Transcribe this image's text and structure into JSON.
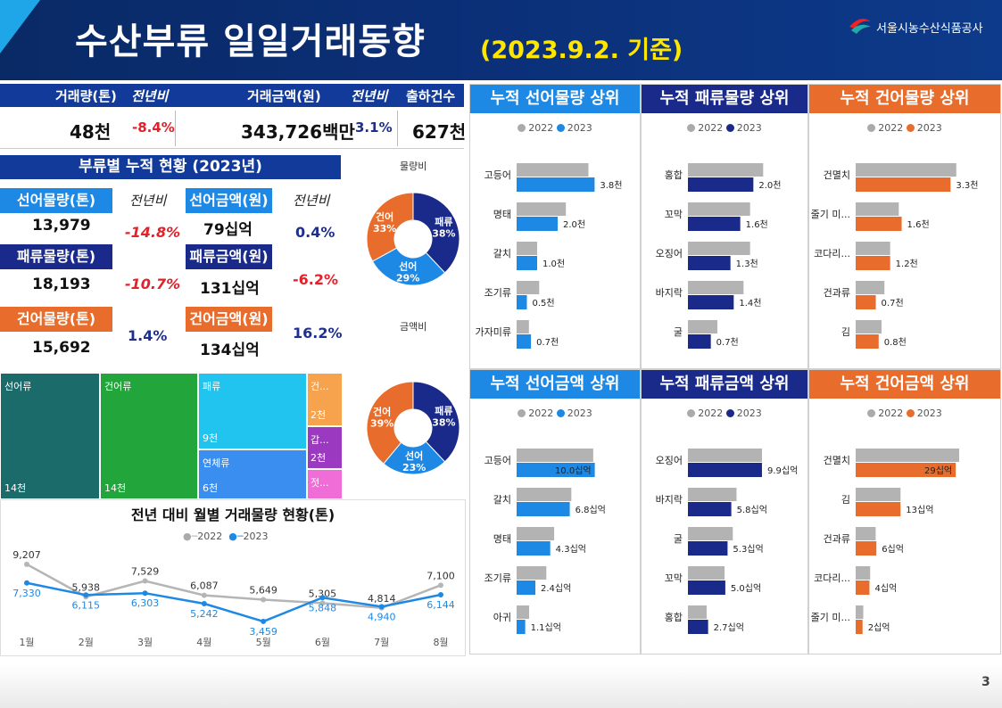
{
  "header": {
    "title": "수산부류 일일거래동향",
    "date": "(2023.9.2. 기준)",
    "org": "서울시농수산식품공사"
  },
  "kpi": {
    "h_volume": "거래량(톤)",
    "h_yoy1": "전년비",
    "h_amount": "거래금액(원)",
    "h_yoy2": "전년비",
    "h_shipments": "출하건수",
    "volume_num": "48",
    "volume_unit": "천",
    "volume_yoy": "-8.4%",
    "amount_num": "343,726",
    "amount_unit": "백만",
    "amount_yoy": "3.1%",
    "shipments_num": "627",
    "shipments_unit": "천"
  },
  "cum": {
    "title": "부류별 누적 현황 (2023년)",
    "yoy_label1": "전년비",
    "yoy_label2": "전년비",
    "rows": [
      {
        "vol_label": "선어물량(톤)",
        "vol": "13,979",
        "vol_yoy": "-14.8%",
        "amt_label": "선어금액(원)",
        "amt_num": "79",
        "amt_unit": "십억",
        "amt_yoy": "0.4%"
      },
      {
        "vol_label": "패류물량(톤)",
        "vol": "18,193",
        "vol_yoy": "-10.7%",
        "amt_label": "패류금액(원)",
        "amt_num": "131",
        "amt_unit": "십억",
        "amt_yoy": "-6.2%"
      },
      {
        "vol_label": "건어물량(톤)",
        "vol": "15,692",
        "vol_yoy": "1.4%",
        "amt_label": "건어금액(원)",
        "amt_num": "134",
        "amt_unit": "십억",
        "amt_yoy": "16.2%"
      }
    ]
  },
  "donuts": {
    "volume_title": "물량비",
    "amount_title": "금액비",
    "volume": [
      {
        "name": "패류",
        "value": 38,
        "color": "#1a2a8a"
      },
      {
        "name": "선어",
        "value": 29,
        "color": "#1e88e5"
      },
      {
        "name": "건어",
        "value": 33,
        "color": "#e86c2b"
      }
    ],
    "amount": [
      {
        "name": "패류",
        "value": 38,
        "color": "#1a2a8a"
      },
      {
        "name": "선어",
        "value": 23,
        "color": "#1e88e5"
      },
      {
        "name": "건어",
        "value": 39,
        "color": "#e86c2b"
      }
    ]
  },
  "treemap": [
    {
      "name": "선어류",
      "value": "14천",
      "color": "#1c6b6b"
    },
    {
      "name": "건어류",
      "value": "14천",
      "color": "#22a53a"
    },
    {
      "name": "패류",
      "value": "9천",
      "color": "#21c4ef"
    },
    {
      "name": "연체류",
      "value": "6천",
      "color": "#3a8ef0"
    },
    {
      "name": "건...",
      "value": "2천",
      "color": "#f7a24c"
    },
    {
      "name": "갑...",
      "value": "2천",
      "color": "#9b3ac0"
    },
    {
      "name": "젓...",
      "value": "",
      "color": "#f06cd6"
    }
  ],
  "line": {
    "title": "전년 대비 월별 거래물량 현황(톤)",
    "months": [
      "1월",
      "2월",
      "3월",
      "4월",
      "5월",
      "6월",
      "7월",
      "8월"
    ],
    "s2022": [
      9207,
      5938,
      7529,
      6087,
      5649,
      5305,
      4814,
      7100
    ],
    "s2023": [
      7330,
      6115,
      6303,
      5242,
      3459,
      5848,
      4940,
      6144
    ],
    "labels2022": [
      "9,207",
      "5,938",
      "7,529",
      "6,087",
      "5,649",
      "5,305",
      "4,814",
      "7,100"
    ],
    "labels2023": [
      "7,330",
      "6,115",
      "6,303",
      "5,242",
      "3,459",
      "5,848",
      "4,940",
      "6,144"
    ],
    "legend": [
      "2022",
      "2023"
    ]
  },
  "panels": [
    {
      "title": "누적 선어물량 상위",
      "hcolor": "#1e88e5",
      "color": "#1e88e5",
      "legend": [
        "2022",
        "2023"
      ],
      "max": 4.0,
      "items": [
        {
          "name": "고등어",
          "v22": 3.5,
          "v23": 3.8,
          "label": "3.8천"
        },
        {
          "name": "명태",
          "v22": 2.4,
          "v23": 2.0,
          "label": "2.0천"
        },
        {
          "name": "갈치",
          "v22": 1.0,
          "v23": 1.0,
          "label": "1.0천"
        },
        {
          "name": "조기류",
          "v22": 1.1,
          "v23": 0.5,
          "label": "0.5천"
        },
        {
          "name": "가자미류",
          "v22": 0.6,
          "v23": 0.7,
          "label": "0.7천"
        }
      ]
    },
    {
      "title": "누적 패류물량 상위",
      "hcolor": "#1a2a8a",
      "color": "#1a2a8a",
      "legend": [
        "2022",
        "2023"
      ],
      "max": 2.4,
      "items": [
        {
          "name": "홍합",
          "v22": 2.3,
          "v23": 2.0,
          "label": "2.0천"
        },
        {
          "name": "꼬막",
          "v22": 1.9,
          "v23": 1.6,
          "label": "1.6천"
        },
        {
          "name": "오징어",
          "v22": 1.9,
          "v23": 1.3,
          "label": "1.3천"
        },
        {
          "name": "바지락",
          "v22": 1.7,
          "v23": 1.4,
          "label": "1.4천"
        },
        {
          "name": "굴",
          "v22": 0.9,
          "v23": 0.7,
          "label": "0.7천"
        }
      ]
    },
    {
      "title": "누적 건어물량 상위",
      "hcolor": "#e86c2b",
      "color": "#e86c2b",
      "legend": [
        "2022",
        "2023"
      ],
      "max": 3.6,
      "items": [
        {
          "name": "건멸치",
          "v22": 3.5,
          "v23": 3.3,
          "label": "3.3천"
        },
        {
          "name": "줄기 미...",
          "v22": 1.5,
          "v23": 1.6,
          "label": "1.6천"
        },
        {
          "name": "코다리...",
          "v22": 1.2,
          "v23": 1.2,
          "label": "1.2천"
        },
        {
          "name": "건과류",
          "v22": 1.0,
          "v23": 0.7,
          "label": "0.7천"
        },
        {
          "name": "김",
          "v22": 0.9,
          "v23": 0.8,
          "label": "0.8천"
        }
      ]
    },
    {
      "title": "누적 선어금액 상위",
      "hcolor": "#1e88e5",
      "color": "#1e88e5",
      "legend": [
        "2022",
        "2023"
      ],
      "max": 10.5,
      "items": [
        {
          "name": "고등어",
          "v22": 9.8,
          "v23": 10.0,
          "label": "10.0십억",
          "inside": true
        },
        {
          "name": "갈치",
          "v22": 7.0,
          "v23": 6.8,
          "label": "6.8십억"
        },
        {
          "name": "명태",
          "v22": 4.8,
          "v23": 4.3,
          "label": "4.3십억"
        },
        {
          "name": "조기류",
          "v22": 3.8,
          "v23": 2.4,
          "label": "2.4십억"
        },
        {
          "name": "아귀",
          "v22": 1.6,
          "v23": 1.1,
          "label": "1.1십억"
        }
      ]
    },
    {
      "title": "누적 패류금액 상위",
      "hcolor": "#1a2a8a",
      "color": "#1a2a8a",
      "legend": [
        "2022",
        "2023"
      ],
      "max": 10.5,
      "items": [
        {
          "name": "오징어",
          "v22": 9.9,
          "v23": 9.9,
          "label": "9.9십억"
        },
        {
          "name": "바지락",
          "v22": 6.5,
          "v23": 5.8,
          "label": "5.8십억"
        },
        {
          "name": "굴",
          "v22": 6.0,
          "v23": 5.3,
          "label": "5.3십억"
        },
        {
          "name": "꼬막",
          "v22": 4.9,
          "v23": 5.0,
          "label": "5.0십억"
        },
        {
          "name": "홍합",
          "v22": 2.5,
          "v23": 2.7,
          "label": "2.7십억"
        }
      ]
    },
    {
      "title": "누적 건어금액 상위",
      "hcolor": "#e86c2b",
      "color": "#e86c2b",
      "legend": [
        "2022",
        "2023"
      ],
      "max": 30,
      "items": [
        {
          "name": "건멸치",
          "v22": 30,
          "v23": 29,
          "label": "29십억",
          "inside": true
        },
        {
          "name": "김",
          "v22": 13,
          "v23": 13,
          "label": "13십억"
        },
        {
          "name": "건과류",
          "v22": 5.8,
          "v23": 6,
          "label": "6십억"
        },
        {
          "name": "코다리...",
          "v22": 4.2,
          "v23": 4,
          "label": "4십억"
        },
        {
          "name": "줄기 미...",
          "v22": 2.2,
          "v23": 2,
          "label": "2십억"
        }
      ]
    }
  ],
  "page_number": "3",
  "chart_data": [
    {
      "type": "line",
      "title": "전년 대비 월별 거래물량 현황(톤)",
      "categories": [
        "1월",
        "2월",
        "3월",
        "4월",
        "5월",
        "6월",
        "7월",
        "8월"
      ],
      "series": [
        {
          "name": "2022",
          "values": [
            9207,
            5938,
            7529,
            6087,
            5649,
            5305,
            4814,
            7100
          ]
        },
        {
          "name": "2023",
          "values": [
            7330,
            6115,
            6303,
            5242,
            3459,
            5848,
            4940,
            6144
          ]
        }
      ]
    },
    {
      "type": "pie",
      "title": "물量비",
      "categories": [
        "패류",
        "선어",
        "건어"
      ],
      "values": [
        38,
        29,
        33
      ]
    },
    {
      "type": "pie",
      "title": "금액비",
      "categories": [
        "패류",
        "선어",
        "건어"
      ],
      "values": [
        38,
        23,
        39
      ]
    }
  ]
}
